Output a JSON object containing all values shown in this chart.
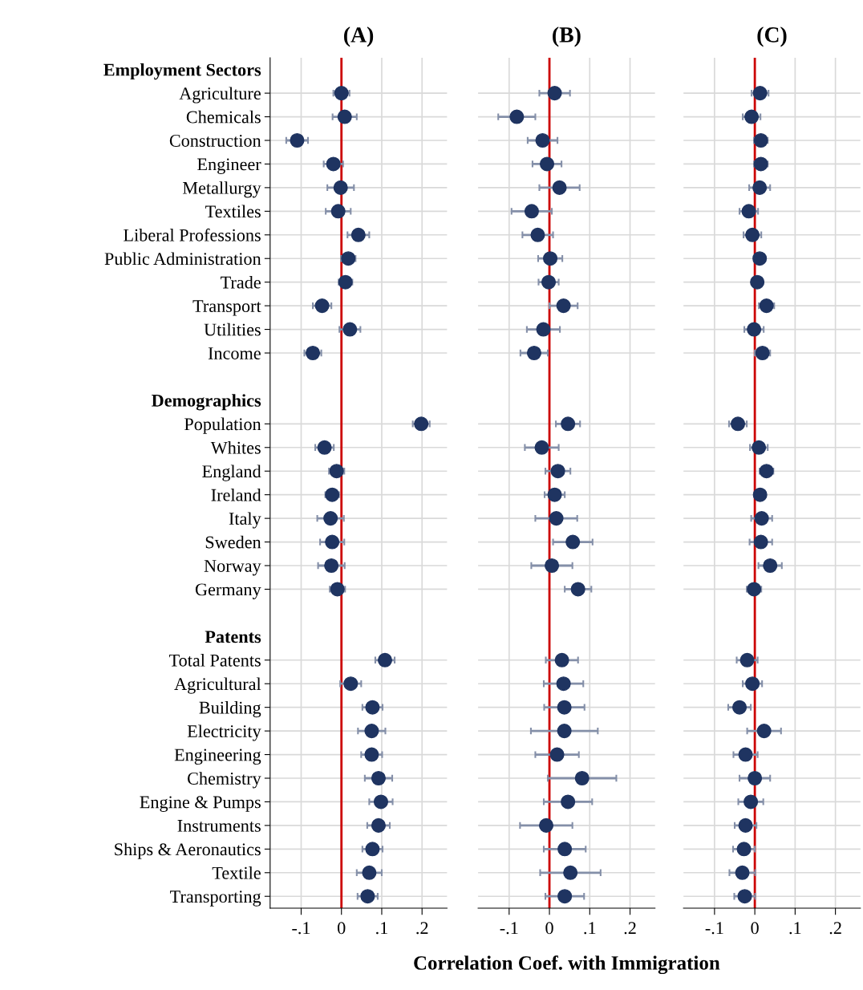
{
  "chart_data": [
    {
      "type": "scatter",
      "orientation": "horizontal",
      "title": "(A)",
      "categories": [
        "Employment Sectors",
        "Agriculture",
        "Chemicals",
        "Construction",
        "Engineer",
        "Metallurgy",
        "Textiles",
        "Liberal Professions",
        "Public Administration",
        "Trade",
        "Transport",
        "Utilities",
        "Income",
        null,
        "Demographics",
        "Population",
        "Whites",
        "England",
        "Ireland",
        "Italy",
        "Sweden",
        "Norway",
        "Germany",
        null,
        "Patents",
        "Total Patents",
        "Agricultural",
        "Building",
        "Electricity",
        "Engineering",
        "Chemistry",
        "Engine & Pumps",
        "Instruments",
        "Ships & Aeronautics",
        "Textile",
        "Transporting"
      ],
      "series": [
        {
          "color": "#1f3461",
          "values": [
            null,
            0.0,
            0.008,
            -0.11,
            -0.02,
            -0.002,
            -0.008,
            0.042,
            0.017,
            0.01,
            -0.048,
            0.021,
            -0.071,
            null,
            null,
            0.198,
            -0.042,
            -0.012,
            -0.023,
            -0.027,
            -0.023,
            -0.025,
            -0.01,
            null,
            null,
            0.108,
            0.023,
            0.077,
            0.075,
            0.075,
            0.092,
            0.098,
            0.092,
            0.077,
            0.069,
            0.065
          ],
          "errors": [
            null,
            0.02,
            0.03,
            0.027,
            0.024,
            0.033,
            0.031,
            0.027,
            0.018,
            0.017,
            0.023,
            0.026,
            0.021,
            null,
            null,
            0.021,
            0.023,
            0.019,
            0.017,
            0.033,
            0.03,
            0.033,
            0.019,
            null,
            null,
            0.024,
            0.026,
            0.025,
            0.034,
            0.026,
            0.034,
            0.029,
            0.028,
            0.025,
            0.031,
            0.025
          ]
        }
      ],
      "xlim": [
        -0.177,
        0.262
      ],
      "xticks": [
        {
          "value": -0.1,
          "label": "-.1"
        },
        0,
        {
          "value": 0.1,
          "label": ".1"
        },
        {
          "value": 0.2,
          "label": ".2"
        }
      ],
      "ref_lines": [
        {
          "axis": "x",
          "value": 0,
          "color": "#cc0000"
        }
      ],
      "grid": true,
      "marker": "circle"
    },
    {
      "type": "scatter",
      "orientation": "horizontal",
      "title": "(B)",
      "xlabel": "Correlation Coef. with Immigration",
      "categories": [
        null,
        null,
        null,
        null,
        null,
        null,
        null,
        null,
        null,
        null,
        null,
        null,
        null,
        null,
        null,
        null,
        null,
        null,
        null,
        null,
        null,
        null,
        null,
        null,
        null,
        null,
        null,
        null,
        null,
        null,
        null,
        null,
        null,
        null,
        null,
        null
      ],
      "series": [
        {
          "color": "#1f3461",
          "values": [
            null,
            0.013,
            -0.081,
            -0.017,
            -0.006,
            0.025,
            -0.044,
            -0.029,
            0.002,
            -0.002,
            0.035,
            -0.015,
            -0.038,
            null,
            null,
            0.046,
            -0.019,
            0.021,
            0.013,
            0.017,
            0.058,
            0.006,
            0.071,
            null,
            null,
            0.031,
            0.035,
            0.037,
            0.037,
            0.019,
            0.081,
            0.046,
            -0.008,
            0.038,
            0.052,
            0.038
          ],
          "errors": [
            null,
            0.038,
            0.046,
            0.037,
            0.036,
            0.05,
            0.05,
            0.038,
            0.03,
            0.025,
            0.035,
            0.041,
            0.034,
            null,
            null,
            0.03,
            0.042,
            0.031,
            0.025,
            0.052,
            0.049,
            0.051,
            0.033,
            null,
            null,
            0.04,
            0.049,
            0.05,
            0.083,
            0.054,
            0.085,
            0.06,
            0.065,
            0.052,
            0.075,
            0.048
          ]
        }
      ],
      "xlim": [
        -0.177,
        0.262
      ],
      "xticks": [
        {
          "value": -0.1,
          "label": "-.1"
        },
        0,
        {
          "value": 0.1,
          "label": ".1"
        },
        {
          "value": 0.2,
          "label": ".2"
        }
      ],
      "ref_lines": [
        {
          "axis": "x",
          "value": 0,
          "color": "#cc0000"
        }
      ],
      "grid": true,
      "marker": "circle",
      "tick_labels": "x"
    },
    {
      "type": "scatter",
      "orientation": "horizontal",
      "title": "(C)",
      "categories": [
        null,
        null,
        null,
        null,
        null,
        null,
        null,
        null,
        null,
        null,
        null,
        null,
        null,
        null,
        null,
        null,
        null,
        null,
        null,
        null,
        null,
        null,
        null,
        null,
        null,
        null,
        null,
        null,
        null,
        null,
        null,
        null,
        null,
        null,
        null,
        null
      ],
      "series": [
        {
          "color": "#1f3461",
          "values": [
            null,
            0.013,
            -0.008,
            0.015,
            0.015,
            0.012,
            -0.015,
            -0.006,
            0.012,
            0.006,
            0.029,
            -0.002,
            0.019,
            null,
            null,
            -0.042,
            0.01,
            0.029,
            0.013,
            0.017,
            0.015,
            0.038,
            -0.002,
            null,
            null,
            -0.019,
            -0.006,
            -0.038,
            0.023,
            -0.023,
            0.0,
            -0.01,
            -0.023,
            -0.027,
            -0.031,
            -0.025
          ],
          "errors": [
            null,
            0.021,
            0.022,
            0.017,
            0.017,
            0.026,
            0.023,
            0.022,
            0.013,
            0.013,
            0.019,
            0.024,
            0.019,
            null,
            null,
            0.022,
            0.022,
            0.017,
            0.012,
            0.026,
            0.028,
            0.029,
            0.018,
            null,
            null,
            0.026,
            0.024,
            0.028,
            0.042,
            0.03,
            0.038,
            0.031,
            0.027,
            0.027,
            0.032,
            0.026
          ]
        }
      ],
      "xlim": [
        -0.177,
        0.262
      ],
      "xticks": [
        {
          "value": -0.1,
          "label": "-.1"
        },
        0,
        {
          "value": 0.1,
          "label": ".1"
        },
        {
          "value": 0.2,
          "label": ".2"
        }
      ],
      "ref_lines": [
        {
          "axis": "x",
          "value": 0,
          "color": "#cc0000"
        }
      ],
      "grid": true,
      "marker": "circle",
      "tick_labels": "x"
    }
  ]
}
